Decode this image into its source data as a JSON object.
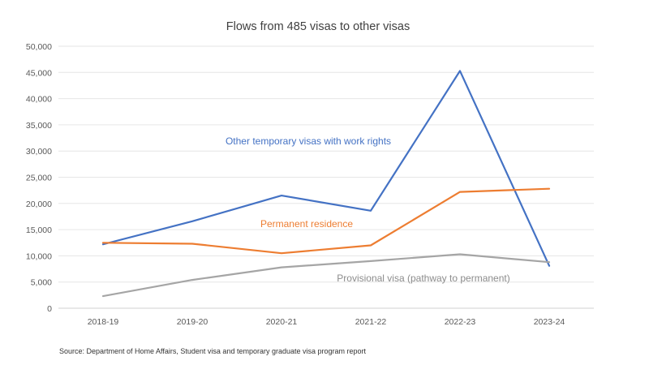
{
  "chart_data": {
    "type": "line",
    "title": "Flows from 485 visas to other visas",
    "xlabel": "",
    "ylabel": "",
    "categories": [
      "2018-19",
      "2019-20",
      "2020-21",
      "2021-22",
      "2022-23",
      "2023-24"
    ],
    "ylim": [
      0,
      50000
    ],
    "yticks": [
      0,
      5000,
      10000,
      15000,
      20000,
      25000,
      30000,
      35000,
      40000,
      45000,
      50000
    ],
    "ytick_labels": [
      "0",
      "5,000",
      "10,000",
      "15,000",
      "20,000",
      "25,000",
      "30,000",
      "35,000",
      "40,000",
      "45,000",
      "50,000"
    ],
    "grid": true,
    "legend": "none (series labelled directly on plot)",
    "series": [
      {
        "name": "Other temporary visas with work rights",
        "color": "#4472C4",
        "values": [
          12200,
          16600,
          21500,
          18600,
          45300,
          8100
        ]
      },
      {
        "name": "Permanent residence",
        "color": "#ED7D31",
        "values": [
          12500,
          12300,
          10500,
          12000,
          22200,
          22800
        ]
      },
      {
        "name": "Provisional visa (pathway to permanent)",
        "color": "#A5A5A5",
        "values": [
          2300,
          5400,
          7800,
          9000,
          10300,
          8800
        ]
      }
    ],
    "annotations": [
      {
        "series": 0,
        "text": "Other temporary visas with work rights"
      },
      {
        "series": 1,
        "text": "Permanent residence"
      },
      {
        "series": 2,
        "text": "Provisional visa (pathway to permanent)"
      }
    ],
    "source": "Source: Department of Home Affairs, Student visa and temporary graduate visa program report"
  }
}
